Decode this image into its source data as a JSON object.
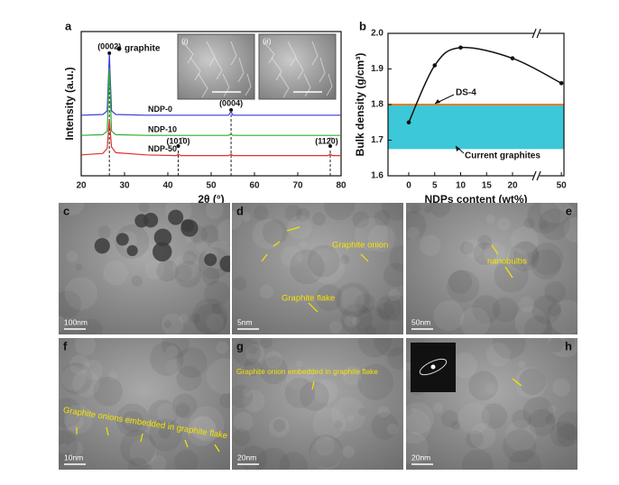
{
  "chart_data": [
    {
      "type": "line",
      "label": "a",
      "xlabel": "2θ (°)",
      "ylabel": "Intensity (a.u.)",
      "marker_legend": "graphite",
      "insets": [
        "(i)",
        "(ii)"
      ],
      "x": [
        20,
        25,
        26,
        26.5,
        27,
        28,
        35,
        42,
        42.4,
        43,
        54,
        54.6,
        55,
        70,
        77,
        77.5,
        78,
        80
      ],
      "series": [
        {
          "name": "NDP-0",
          "color": "#3b3bd6",
          "values": [
            4.2,
            4.25,
            4.5,
            8.4,
            4.5,
            4.25,
            4.2,
            4.2,
            4.2,
            4.2,
            4.2,
            4.45,
            4.2,
            4.2,
            4.2,
            4.2,
            4.2,
            4.2
          ]
        },
        {
          "name": "NDP-10",
          "color": "#2fae2f",
          "values": [
            2.8,
            2.85,
            3.1,
            7.5,
            3.1,
            2.85,
            2.8,
            2.8,
            2.8,
            2.8,
            2.8,
            2.9,
            2.8,
            2.8,
            2.8,
            2.8,
            2.8,
            2.8
          ]
        },
        {
          "name": "NDP-50",
          "color": "#e03030",
          "values": [
            1.45,
            1.55,
            1.9,
            3.9,
            2.0,
            1.6,
            1.45,
            1.4,
            1.5,
            1.4,
            1.4,
            1.5,
            1.4,
            1.4,
            1.4,
            1.5,
            1.4,
            1.4
          ]
        }
      ],
      "peaks": [
        {
          "x": 26.5,
          "label": "(0002)"
        },
        {
          "x": 42.4,
          "label": "(101̄0)"
        },
        {
          "x": 54.6,
          "label": "(0004)"
        },
        {
          "x": 77.5,
          "label": "(112̄0)"
        }
      ],
      "xlim": [
        20,
        80
      ],
      "xticks": [
        20,
        30,
        40,
        50,
        60,
        70,
        80
      ],
      "ylim": [
        0,
        10
      ]
    },
    {
      "type": "line",
      "label": "b",
      "xlabel": "NDPs content (wt%)",
      "ylabel": "Bulk density (g/cm³)",
      "x": [
        0,
        5,
        10,
        20,
        50
      ],
      "values": [
        1.75,
        1.91,
        1.96,
        1.93,
        1.86
      ],
      "color": "#111111",
      "reference_line": {
        "value": 1.8,
        "label": "DS-4",
        "color": "#f07a1a"
      },
      "band": {
        "range": [
          1.675,
          1.8
        ],
        "label": "Current graphites",
        "color": "#3cc8d8"
      },
      "xlim": [
        -4,
        50.5
      ],
      "xticks": [
        0,
        5,
        10,
        15,
        20,
        50
      ],
      "axis_break": true,
      "ylim": [
        1.6,
        2.0
      ],
      "yticks": [
        1.6,
        1.7,
        1.8,
        1.9,
        {
          "value": 2.0,
          "label": "2.0"
        }
      ]
    }
  ],
  "image_panels": [
    {
      "label": "c",
      "scale_bar": "100nm",
      "annotations": []
    },
    {
      "label": "d",
      "scale_bar": "5nm",
      "annotations": [
        "Graphite onion",
        "Graphite flake"
      ]
    },
    {
      "label": "e",
      "scale_bar": "50nm",
      "annotations": [
        "nanobulbs"
      ]
    },
    {
      "label": "f",
      "scale_bar": "10nm",
      "annotations": [
        "Graphite onions embedded in graphite flake"
      ]
    },
    {
      "label": "g",
      "scale_bar": "20nm",
      "annotations": [
        "Graphite onion embedded in graphite flake"
      ]
    },
    {
      "label": "h",
      "scale_bar": "20nm",
      "annotations": []
    }
  ]
}
